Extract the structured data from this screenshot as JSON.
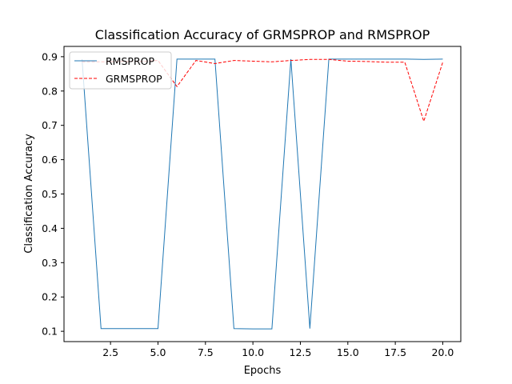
{
  "chart_data": {
    "type": "line",
    "title": "Classification Accuracy of GRMSPROP and RMSPROP",
    "xlabel": "Epochs",
    "ylabel": "Classification Accuracy",
    "xlim": [
      0.05,
      20.95
    ],
    "ylim": [
      0.07,
      0.93
    ],
    "x_ticks": [
      2.5,
      5.0,
      7.5,
      10.0,
      12.5,
      15.0,
      17.5,
      20.0
    ],
    "x_tick_labels": [
      "2.5",
      "5.0",
      "7.5",
      "10.0",
      "12.5",
      "15.0",
      "17.5",
      "20.0"
    ],
    "y_ticks": [
      0.1,
      0.2,
      0.3,
      0.4,
      0.5,
      0.6,
      0.7,
      0.8,
      0.9
    ],
    "y_tick_labels": [
      "0.1",
      "0.2",
      "0.3",
      "0.4",
      "0.5",
      "0.6",
      "0.7",
      "0.8",
      "0.9"
    ],
    "grid": false,
    "legend_position": "top-left",
    "x": [
      1,
      2,
      3,
      4,
      5,
      6,
      7,
      8,
      9,
      10,
      11,
      12,
      13,
      14,
      15,
      16,
      17,
      18,
      19,
      20
    ],
    "series": [
      {
        "name": "RMSPROP",
        "color": "#1f77b4",
        "style": "solid",
        "values": [
          0.893,
          0.108,
          0.108,
          0.108,
          0.108,
          0.893,
          0.893,
          0.893,
          0.108,
          0.107,
          0.107,
          0.893,
          0.108,
          0.893,
          0.893,
          0.893,
          0.893,
          0.893,
          0.892,
          0.893
        ]
      },
      {
        "name": "GRMSPROP",
        "color": "#ff0000",
        "style": "dashed",
        "values": [
          0.885,
          0.885,
          0.886,
          0.886,
          0.889,
          0.813,
          0.889,
          0.88,
          0.889,
          0.887,
          0.885,
          0.889,
          0.892,
          0.892,
          0.887,
          0.886,
          0.884,
          0.884,
          0.712,
          0.884
        ]
      }
    ]
  }
}
